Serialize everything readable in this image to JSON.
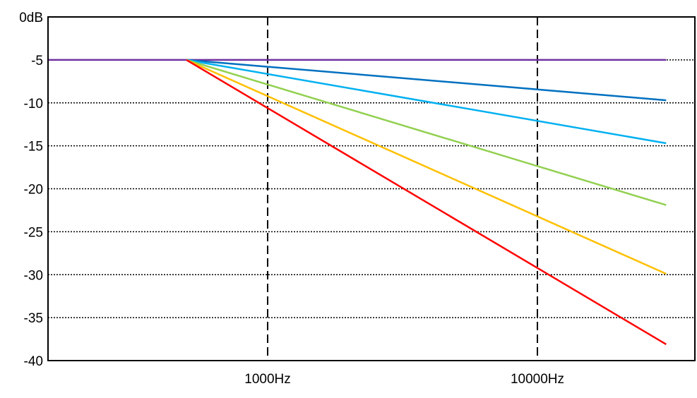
{
  "chart_data": {
    "type": "line",
    "title": "",
    "xlabel": "",
    "ylabel": "",
    "x_scale": "log",
    "x_domain_hz": [
      150,
      30000
    ],
    "ylim": [
      -40,
      0
    ],
    "y_ticks": [
      {
        "value": 0,
        "label": "0dB"
      },
      {
        "value": -5,
        "label": "-5"
      },
      {
        "value": -10,
        "label": "-10"
      },
      {
        "value": -15,
        "label": "-15"
      },
      {
        "value": -20,
        "label": "-20"
      },
      {
        "value": -25,
        "label": "-25"
      },
      {
        "value": -30,
        "label": "-30"
      },
      {
        "value": -35,
        "label": "-35"
      },
      {
        "value": -40,
        "label": "-40"
      }
    ],
    "x_ticks": [
      {
        "value": 1000,
        "label": "1000Hz"
      },
      {
        "value": 10000,
        "label": "10000Hz"
      }
    ],
    "grid": {
      "horizontal": "dotted",
      "vertical": "dashed"
    },
    "series": [
      {
        "color": "#7030a0",
        "points": [
          [
            150,
            -5
          ],
          [
            30000,
            -5
          ]
        ]
      },
      {
        "color": "#0070c0",
        "points": [
          [
            500,
            -5
          ],
          [
            30000,
            -9.7
          ]
        ]
      },
      {
        "color": "#00b0f0",
        "points": [
          [
            500,
            -5
          ],
          [
            30000,
            -14.7
          ]
        ]
      },
      {
        "color": "#92d050",
        "points": [
          [
            500,
            -5
          ],
          [
            30000,
            -21.9
          ]
        ]
      },
      {
        "color": "#ffc000",
        "points": [
          [
            500,
            -5
          ],
          [
            30000,
            -29.9
          ]
        ]
      },
      {
        "color": "#ff0000",
        "points": [
          [
            500,
            -5
          ],
          [
            30000,
            -38.1
          ]
        ]
      }
    ]
  }
}
